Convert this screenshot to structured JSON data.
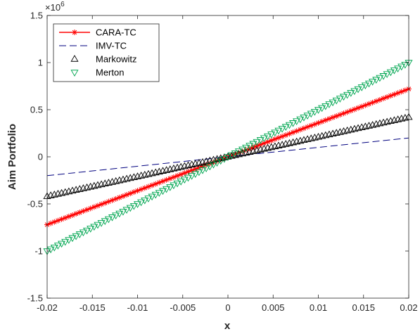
{
  "chart_data": {
    "type": "line",
    "xlabel": "x",
    "ylabel": "Aim Portfolio",
    "xlim": [
      -0.02,
      0.02
    ],
    "ylim": [
      -1500000,
      1500000
    ],
    "y_exponent_label": "×10",
    "y_exponent_power": "6",
    "xticks": [
      -0.02,
      -0.015,
      -0.01,
      -0.005,
      0,
      0.005,
      0.01,
      0.015,
      0.02
    ],
    "xtick_labels": [
      "-0.02",
      "-0.015",
      "-0.01",
      "-0.005",
      "0",
      "0.005",
      "0.01",
      "0.015",
      "0.02"
    ],
    "yticks": [
      -1500000,
      -1000000,
      -500000,
      0,
      500000,
      1000000,
      1500000
    ],
    "ytick_labels": [
      "-1.5",
      "-1",
      "-0.5",
      "0",
      "0.5",
      "1",
      "1.5"
    ],
    "grid": false,
    "legend_position": "top-left",
    "series": [
      {
        "name": "CARA-TC",
        "color": "#ff0000",
        "marker": "asterisk",
        "linestyle": "solid",
        "x": [
          -0.02,
          0.02
        ],
        "y": [
          -720000,
          720000
        ]
      },
      {
        "name": "IMV-TC",
        "color": "#00007f",
        "marker": "none",
        "linestyle": "dashed",
        "x": [
          -0.02,
          0.02
        ],
        "y": [
          -200000,
          200000
        ]
      },
      {
        "name": "Markowitz",
        "color": "#000000",
        "marker": "triangle-up",
        "linestyle": "none",
        "x": [
          -0.02,
          0.02
        ],
        "y": [
          -420000,
          420000
        ]
      },
      {
        "name": "Merton",
        "color": "#00a651",
        "marker": "triangle-down",
        "linestyle": "none",
        "x": [
          -0.02,
          0.02
        ],
        "y": [
          -1000000,
          1000000
        ]
      }
    ]
  }
}
